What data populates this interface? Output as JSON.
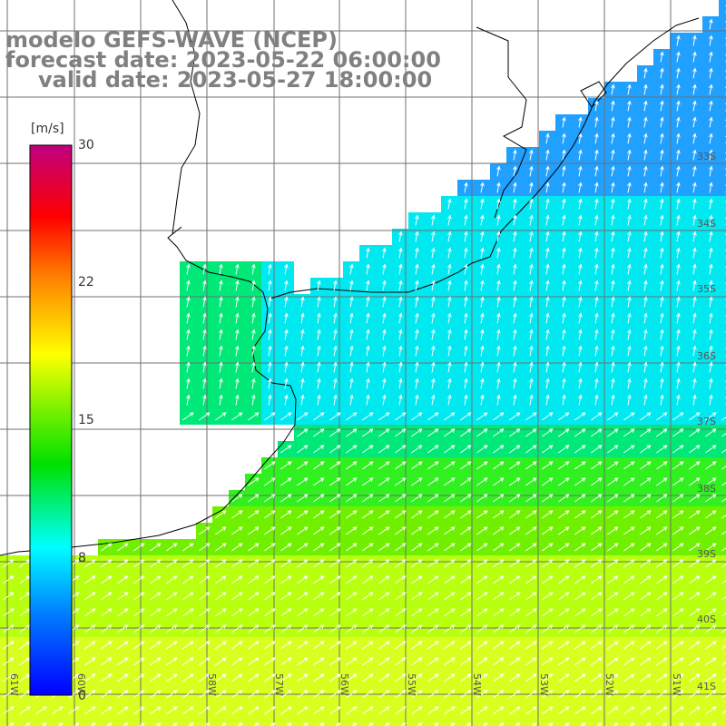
{
  "title": {
    "line1": "modelo GEFS-WAVE (NCEP)",
    "line2": "forecast date: 2023-05-22 06:00:00",
    "line3": "valid date: 2023-05-27 18:00:00"
  },
  "colorbar": {
    "unit": "[m/s]",
    "ticks": [
      "30",
      "22",
      "15",
      "8",
      "0"
    ],
    "colors": [
      "#0000ff",
      "#0080ff",
      "#00ffff",
      "#00e000",
      "#a0ff00",
      "#ffff00",
      "#ff8000",
      "#ff0000",
      "#e00060",
      "#c00080"
    ]
  },
  "axes": {
    "lon_labels": [
      "61W",
      "60W",
      "58W",
      "57W",
      "56W",
      "55W",
      "54W",
      "53W",
      "52W",
      "51W"
    ],
    "lat_labels": [
      "33S",
      "34S",
      "35S",
      "36S",
      "37S",
      "38S",
      "39S",
      "40S",
      "41S"
    ]
  },
  "colors": {
    "land": "#ffffff",
    "grid": "#707070",
    "coast": "#000000",
    "arrows": "#ffffff"
  },
  "legend_icons": [
    "wind-arrow-icon"
  ]
}
